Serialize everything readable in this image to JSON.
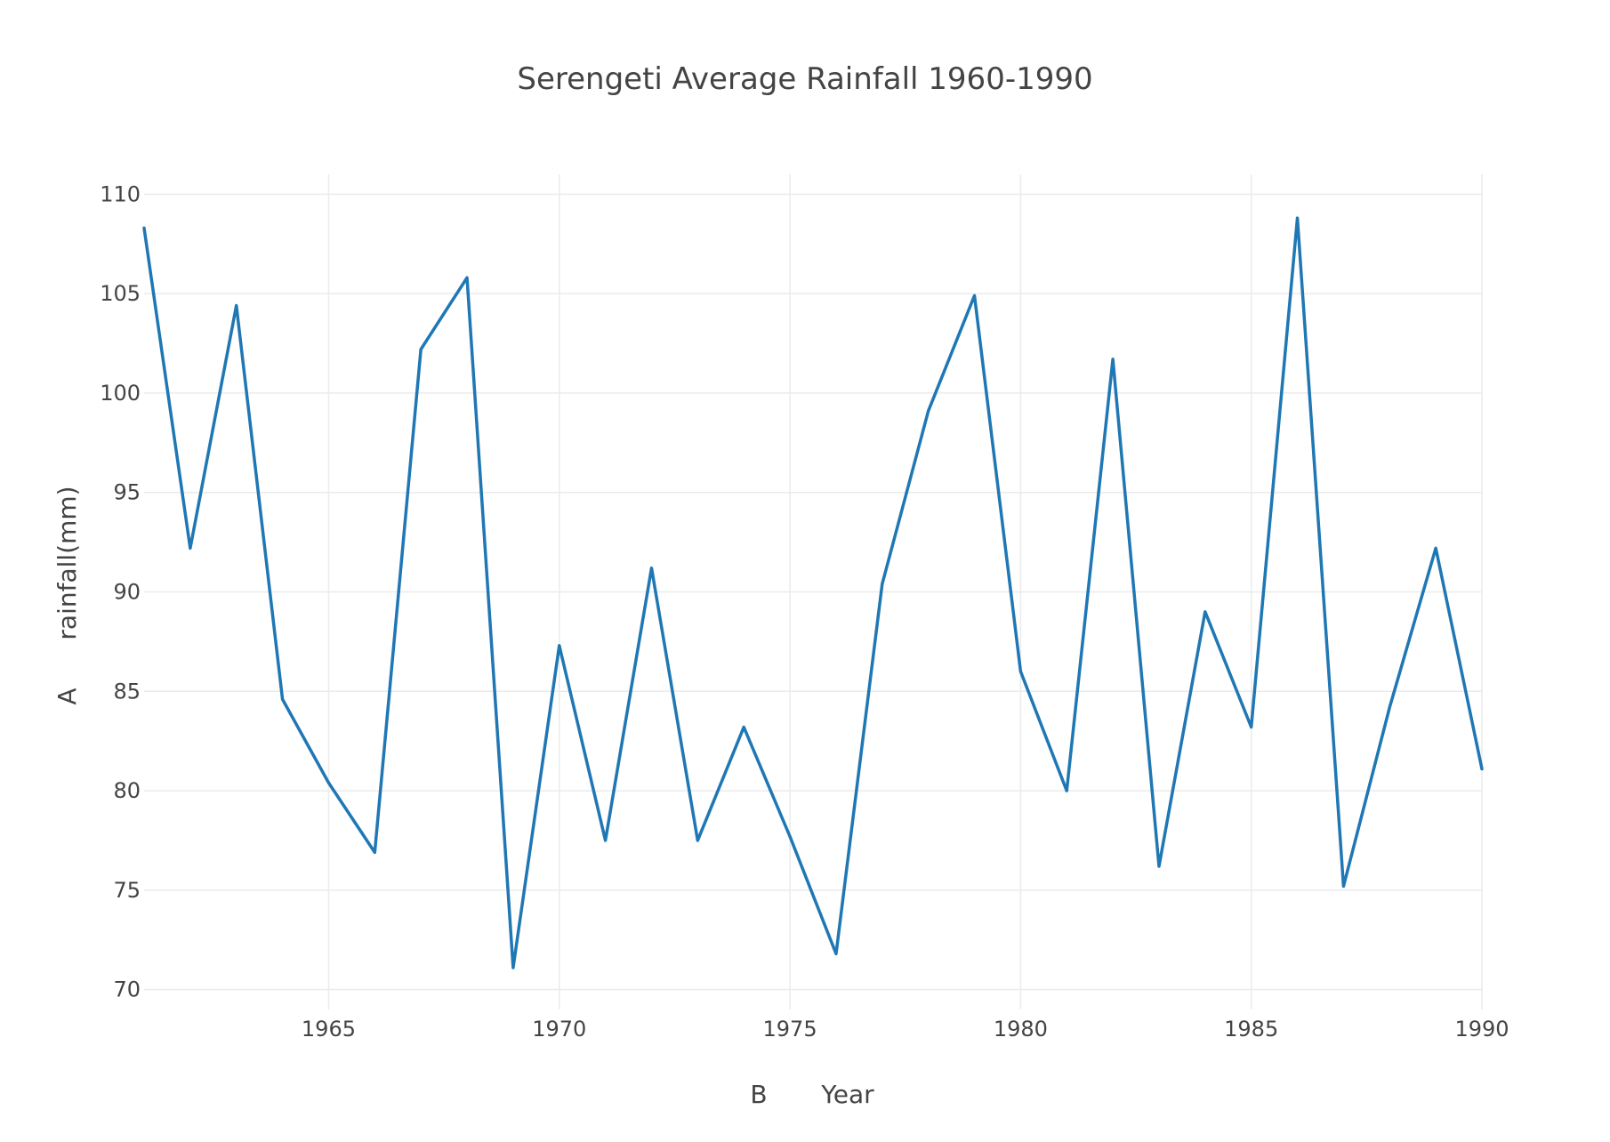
{
  "chart_data": {
    "type": "line",
    "title": "Serengeti Average Rainfall 1960-1990",
    "xlabel": "Year",
    "ylabel": "rainfall(mm)",
    "xlabel_marker": "B",
    "ylabel_marker": "A",
    "xlim": [
      1961,
      1990
    ],
    "ylim": [
      69,
      111
    ],
    "x_ticks": [
      1965,
      1970,
      1975,
      1980,
      1985,
      1990
    ],
    "y_ticks": [
      70,
      75,
      80,
      85,
      90,
      95,
      100,
      105,
      110
    ],
    "grid": true,
    "legend": "none",
    "series": [
      {
        "color": "#1f77b4",
        "x": [
          1961,
          1962,
          1963,
          1964,
          1965,
          1966,
          1967,
          1968,
          1969,
          1970,
          1971,
          1972,
          1973,
          1974,
          1975,
          1976,
          1977,
          1978,
          1979,
          1980,
          1981,
          1982,
          1983,
          1984,
          1985,
          1986,
          1987,
          1988,
          1989,
          1990
        ],
        "y": [
          108.3,
          92.2,
          104.4,
          84.6,
          80.4,
          76.9,
          102.2,
          105.8,
          71.1,
          87.3,
          77.5,
          91.2,
          77.5,
          83.2,
          77.7,
          71.8,
          90.4,
          99.1,
          104.9,
          86.0,
          80.0,
          101.7,
          76.2,
          89.0,
          83.2,
          108.8,
          75.2,
          84.2,
          92.2,
          81.1
        ]
      }
    ]
  }
}
